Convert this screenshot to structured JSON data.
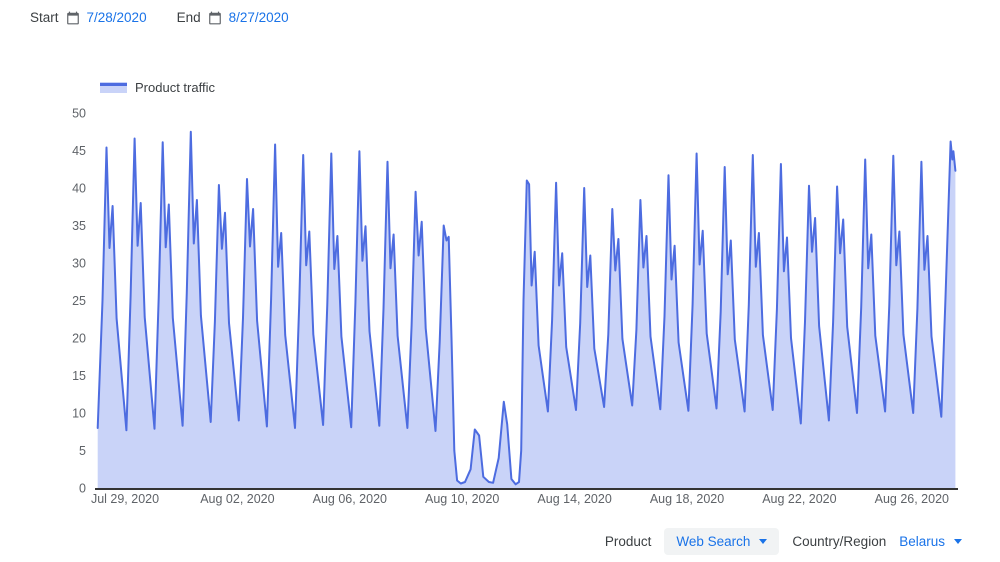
{
  "header": {
    "start_label": "Start",
    "start_date": "7/28/2020",
    "end_label": "End",
    "end_date": "8/27/2020"
  },
  "legend": {
    "label": "Product traffic"
  },
  "controls": {
    "product_label": "Product",
    "product_value": "Web Search",
    "region_label": "Country/Region",
    "region_value": "Belarus"
  },
  "colors": {
    "accent_blue": "#1a73e8",
    "line": "#4d6ce0",
    "fill": "#c9d3f8",
    "axis": "#333333",
    "tick_text": "#5f6368",
    "label_text": "#3c4043",
    "chip_bg": "#f1f3f4"
  },
  "chart_data": {
    "type": "area",
    "title": "Product traffic",
    "xlabel": "",
    "ylabel": "",
    "x_unit": "days since 2020-07-28 00:00",
    "ylim": [
      0,
      50
    ],
    "grid": false,
    "legend_position": "top-left",
    "y_ticks": [
      0,
      5,
      10,
      15,
      20,
      25,
      30,
      35,
      40,
      45,
      50
    ],
    "x_ticks": [
      {
        "t": 1,
        "label": "Jul 29, 2020"
      },
      {
        "t": 5,
        "label": "Aug 02, 2020"
      },
      {
        "t": 9,
        "label": "Aug 06, 2020"
      },
      {
        "t": 13,
        "label": "Aug 10, 2020"
      },
      {
        "t": 17,
        "label": "Aug 14, 2020"
      },
      {
        "t": 21,
        "label": "Aug 18, 2020"
      },
      {
        "t": 25,
        "label": "Aug 22, 2020"
      },
      {
        "t": 29,
        "label": "Aug 26, 2020"
      }
    ],
    "points": [
      [
        0.03,
        8.0
      ],
      [
        0.2,
        25.0
      ],
      [
        0.34,
        45.4
      ],
      [
        0.45,
        32.0
      ],
      [
        0.56,
        37.6
      ],
      [
        0.7,
        22.6
      ],
      [
        1.05,
        7.7
      ],
      [
        1.2,
        25.6
      ],
      [
        1.34,
        46.6
      ],
      [
        1.45,
        32.3
      ],
      [
        1.56,
        38.0
      ],
      [
        1.7,
        22.8
      ],
      [
        2.05,
        7.9
      ],
      [
        2.2,
        25.4
      ],
      [
        2.34,
        46.1
      ],
      [
        2.45,
        32.1
      ],
      [
        2.56,
        37.8
      ],
      [
        2.7,
        22.7
      ],
      [
        3.05,
        8.3
      ],
      [
        3.2,
        26.1
      ],
      [
        3.34,
        47.5
      ],
      [
        3.45,
        32.6
      ],
      [
        3.56,
        38.4
      ],
      [
        3.7,
        23.0
      ],
      [
        4.05,
        8.8
      ],
      [
        4.2,
        22.2
      ],
      [
        4.34,
        40.4
      ],
      [
        4.45,
        31.9
      ],
      [
        4.56,
        36.7
      ],
      [
        4.7,
        22.0
      ],
      [
        5.05,
        9.0
      ],
      [
        5.2,
        22.7
      ],
      [
        5.34,
        41.2
      ],
      [
        5.45,
        32.2
      ],
      [
        5.56,
        37.2
      ],
      [
        5.7,
        22.3
      ],
      [
        6.05,
        8.2
      ],
      [
        6.2,
        25.2
      ],
      [
        6.34,
        45.8
      ],
      [
        6.45,
        29.5
      ],
      [
        6.56,
        34.0
      ],
      [
        6.7,
        20.4
      ],
      [
        7.05,
        8.0
      ],
      [
        7.2,
        24.4
      ],
      [
        7.34,
        44.4
      ],
      [
        7.45,
        29.7
      ],
      [
        7.56,
        34.2
      ],
      [
        7.7,
        20.5
      ],
      [
        8.05,
        8.4
      ],
      [
        8.2,
        24.5
      ],
      [
        8.34,
        44.6
      ],
      [
        8.45,
        29.2
      ],
      [
        8.56,
        33.6
      ],
      [
        8.7,
        20.2
      ],
      [
        9.05,
        8.1
      ],
      [
        9.2,
        24.7
      ],
      [
        9.34,
        44.9
      ],
      [
        9.45,
        30.3
      ],
      [
        9.56,
        34.9
      ],
      [
        9.7,
        20.9
      ],
      [
        10.05,
        8.3
      ],
      [
        10.2,
        23.9
      ],
      [
        10.34,
        43.5
      ],
      [
        10.45,
        29.3
      ],
      [
        10.56,
        33.8
      ],
      [
        10.7,
        20.3
      ],
      [
        11.05,
        8.0
      ],
      [
        11.2,
        21.7
      ],
      [
        11.34,
        39.5
      ],
      [
        11.45,
        31.0
      ],
      [
        11.56,
        35.5
      ],
      [
        11.7,
        21.3
      ],
      [
        12.05,
        7.6
      ],
      [
        12.2,
        19.5
      ],
      [
        12.34,
        35.0
      ],
      [
        12.44,
        33.0
      ],
      [
        12.52,
        33.5
      ],
      [
        12.62,
        20.0
      ],
      [
        12.72,
        5.0
      ],
      [
        12.82,
        1.0
      ],
      [
        12.95,
        0.6
      ],
      [
        13.1,
        0.8
      ],
      [
        13.3,
        2.5
      ],
      [
        13.45,
        7.8
      ],
      [
        13.6,
        7.0
      ],
      [
        13.75,
        1.5
      ],
      [
        13.95,
        0.8
      ],
      [
        14.1,
        0.7
      ],
      [
        14.3,
        4.0
      ],
      [
        14.48,
        11.5
      ],
      [
        14.6,
        8.5
      ],
      [
        14.75,
        1.2
      ],
      [
        14.9,
        0.5
      ],
      [
        15.02,
        0.8
      ],
      [
        15.1,
        5.0
      ],
      [
        15.18,
        25.0
      ],
      [
        15.3,
        41.0
      ],
      [
        15.38,
        40.5
      ],
      [
        15.47,
        27.0
      ],
      [
        15.58,
        31.5
      ],
      [
        15.72,
        19.0
      ],
      [
        16.05,
        10.2
      ],
      [
        16.2,
        22.4
      ],
      [
        16.34,
        40.7
      ],
      [
        16.45,
        27.0
      ],
      [
        16.56,
        31.3
      ],
      [
        16.7,
        18.8
      ],
      [
        17.05,
        10.4
      ],
      [
        17.2,
        22.0
      ],
      [
        17.34,
        40.0
      ],
      [
        17.45,
        26.8
      ],
      [
        17.56,
        31.0
      ],
      [
        17.7,
        18.6
      ],
      [
        18.05,
        10.8
      ],
      [
        18.2,
        20.5
      ],
      [
        18.34,
        37.2
      ],
      [
        18.45,
        29.0
      ],
      [
        18.56,
        33.2
      ],
      [
        18.7,
        19.9
      ],
      [
        19.05,
        11.0
      ],
      [
        19.2,
        21.1
      ],
      [
        19.34,
        38.4
      ],
      [
        19.45,
        29.4
      ],
      [
        19.56,
        33.6
      ],
      [
        19.7,
        20.2
      ],
      [
        20.05,
        10.5
      ],
      [
        20.2,
        22.9
      ],
      [
        20.34,
        41.7
      ],
      [
        20.45,
        27.8
      ],
      [
        20.56,
        32.3
      ],
      [
        20.7,
        19.4
      ],
      [
        21.05,
        10.3
      ],
      [
        21.2,
        24.5
      ],
      [
        21.34,
        44.6
      ],
      [
        21.45,
        29.8
      ],
      [
        21.56,
        34.3
      ],
      [
        21.7,
        20.6
      ],
      [
        22.05,
        10.6
      ],
      [
        22.2,
        23.5
      ],
      [
        22.34,
        42.8
      ],
      [
        22.45,
        28.5
      ],
      [
        22.56,
        33.0
      ],
      [
        22.7,
        19.8
      ],
      [
        23.05,
        10.2
      ],
      [
        23.2,
        24.4
      ],
      [
        23.34,
        44.4
      ],
      [
        23.45,
        29.5
      ],
      [
        23.56,
        34.0
      ],
      [
        23.7,
        20.4
      ],
      [
        24.05,
        10.4
      ],
      [
        24.2,
        23.8
      ],
      [
        24.34,
        43.2
      ],
      [
        24.45,
        28.9
      ],
      [
        24.56,
        33.4
      ],
      [
        24.7,
        20.0
      ],
      [
        25.05,
        8.6
      ],
      [
        25.2,
        22.2
      ],
      [
        25.34,
        40.3
      ],
      [
        25.45,
        31.5
      ],
      [
        25.56,
        36.0
      ],
      [
        25.7,
        21.6
      ],
      [
        26.05,
        9.0
      ],
      [
        26.2,
        22.1
      ],
      [
        26.34,
        40.2
      ],
      [
        26.45,
        31.3
      ],
      [
        26.56,
        35.8
      ],
      [
        26.7,
        21.5
      ],
      [
        27.05,
        10.0
      ],
      [
        27.2,
        24.1
      ],
      [
        27.34,
        43.8
      ],
      [
        27.45,
        29.3
      ],
      [
        27.56,
        33.8
      ],
      [
        27.7,
        20.3
      ],
      [
        28.05,
        10.2
      ],
      [
        28.2,
        24.4
      ],
      [
        28.34,
        44.3
      ],
      [
        28.45,
        29.7
      ],
      [
        28.56,
        34.2
      ],
      [
        28.7,
        20.5
      ],
      [
        29.05,
        10.0
      ],
      [
        29.2,
        23.9
      ],
      [
        29.34,
        43.5
      ],
      [
        29.45,
        29.1
      ],
      [
        29.56,
        33.6
      ],
      [
        29.7,
        20.2
      ],
      [
        30.05,
        9.5
      ],
      [
        30.2,
        25.4
      ],
      [
        30.38,
        46.2
      ],
      [
        30.44,
        43.8
      ],
      [
        30.48,
        44.9
      ],
      [
        30.55,
        42.3
      ]
    ]
  }
}
